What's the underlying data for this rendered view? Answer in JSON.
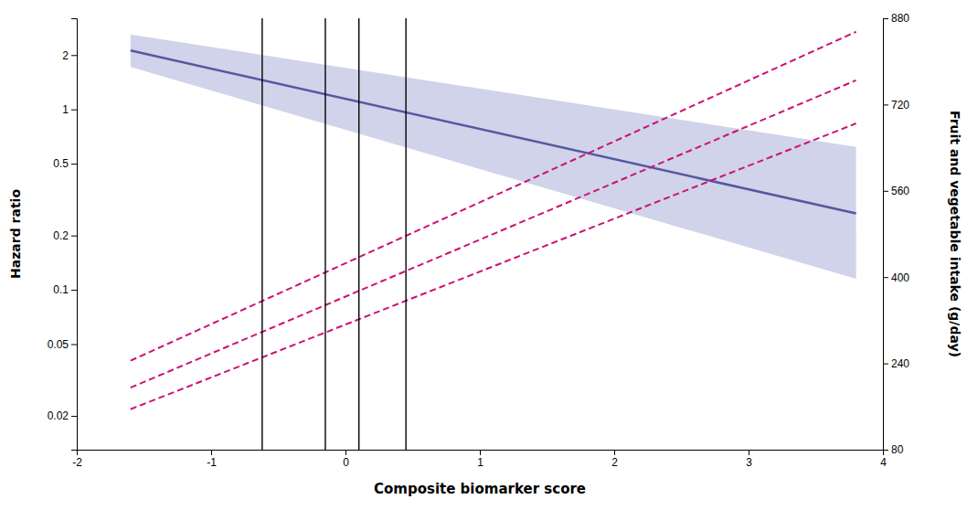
{
  "chart_data": {
    "type": "line",
    "x_label": "Composite biomarker score",
    "y_label": "Hazard ratio",
    "y2_label": "Fruit and vegetable intake (g/day)",
    "log": "y",
    "grid": false,
    "xlim": [
      -2,
      4
    ],
    "xticks": [
      -2,
      -1,
      0,
      1,
      2,
      3,
      4
    ],
    "ylim": [
      0.013,
      3.2
    ],
    "yticks": [
      0.02,
      0.05,
      0.1,
      0.2,
      0.5,
      1,
      2
    ],
    "y2lim": [
      80,
      880
    ],
    "y2ticks": [
      80,
      240,
      400,
      560,
      720,
      880
    ],
    "series": [
      {
        "type": "area",
        "color": "#8a90c8",
        "x": [
          -1.6,
          3.8
        ],
        "lower": [
          1.72,
          0.115
        ],
        "upper": [
          2.6,
          0.62
        ]
      },
      {
        "type": "line",
        "color": "#5558a0",
        "line_style": "solid",
        "x": [
          -1.6,
          3.8
        ],
        "values": [
          2.12,
          0.265
        ]
      },
      {
        "type": "line",
        "axis": "y2",
        "color": "#cc1177",
        "line_style": "dashed",
        "x": [
          -1.6,
          3.8
        ],
        "values": [
          195,
          765
        ]
      },
      {
        "type": "line",
        "axis": "y2",
        "color": "#cc1177",
        "line_style": "dashed",
        "x": [
          -1.6,
          3.8
        ],
        "values": [
          245,
          855
        ]
      },
      {
        "type": "line",
        "axis": "y2",
        "color": "#cc1177",
        "line_style": "dashed",
        "x": [
          -1.6,
          3.8
        ],
        "values": [
          155,
          685
        ]
      },
      {
        "type": "vline",
        "color": "black",
        "x": [
          -0.62,
          -0.15,
          0.1,
          0.45
        ]
      }
    ]
  }
}
